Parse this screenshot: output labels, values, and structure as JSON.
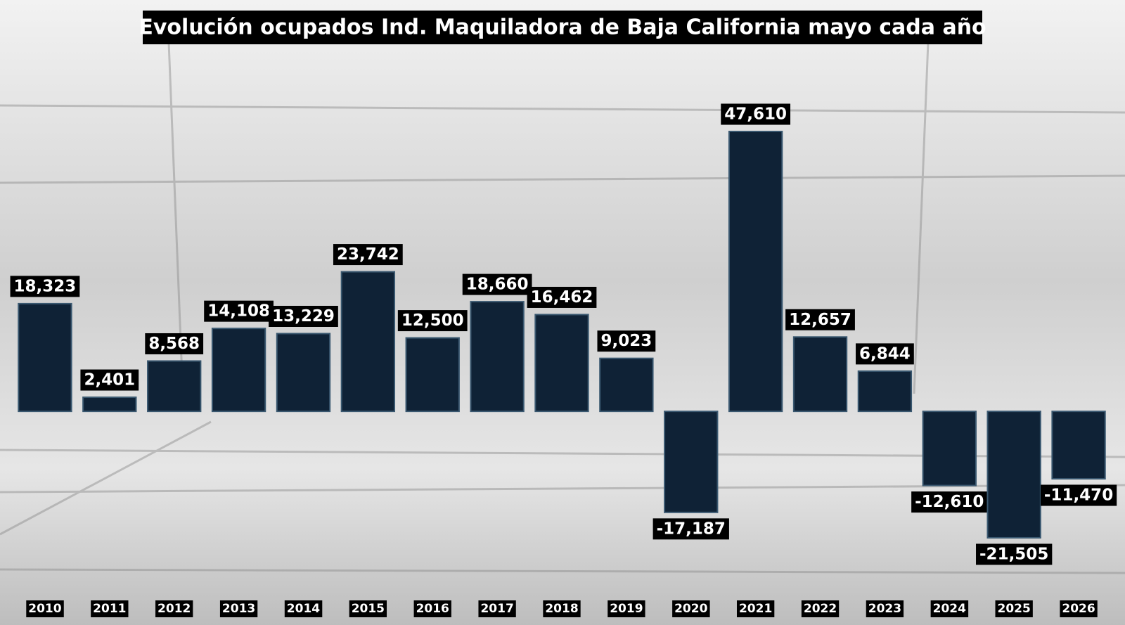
{
  "chart_data": {
    "type": "bar",
    "title": "Evolución ocupados Ind. Maquiladora de Baja California mayo cada año",
    "categories": [
      "2010",
      "2011",
      "2012",
      "2013",
      "2014",
      "2015",
      "2016",
      "2017",
      "2018",
      "2019",
      "2020",
      "2021",
      "2022",
      "2023",
      "2024",
      "2025",
      "2026"
    ],
    "values": [
      18323,
      2401,
      8568,
      14108,
      13229,
      23742,
      12500,
      18660,
      16462,
      9023,
      -17187,
      47610,
      12657,
      6844,
      -12610,
      -21505,
      -11470
    ],
    "value_labels": [
      "18,323",
      "2,401",
      "8,568",
      "14,108",
      "13,229",
      "23,742",
      "12,500",
      "18,660",
      "16,462",
      "9,023",
      "-17,187",
      "47,610",
      "12,657",
      "6,844",
      "-12,610",
      "-21,505",
      "-11,470"
    ],
    "color": "#0f2236",
    "ylim": [
      -30000,
      50000
    ]
  }
}
